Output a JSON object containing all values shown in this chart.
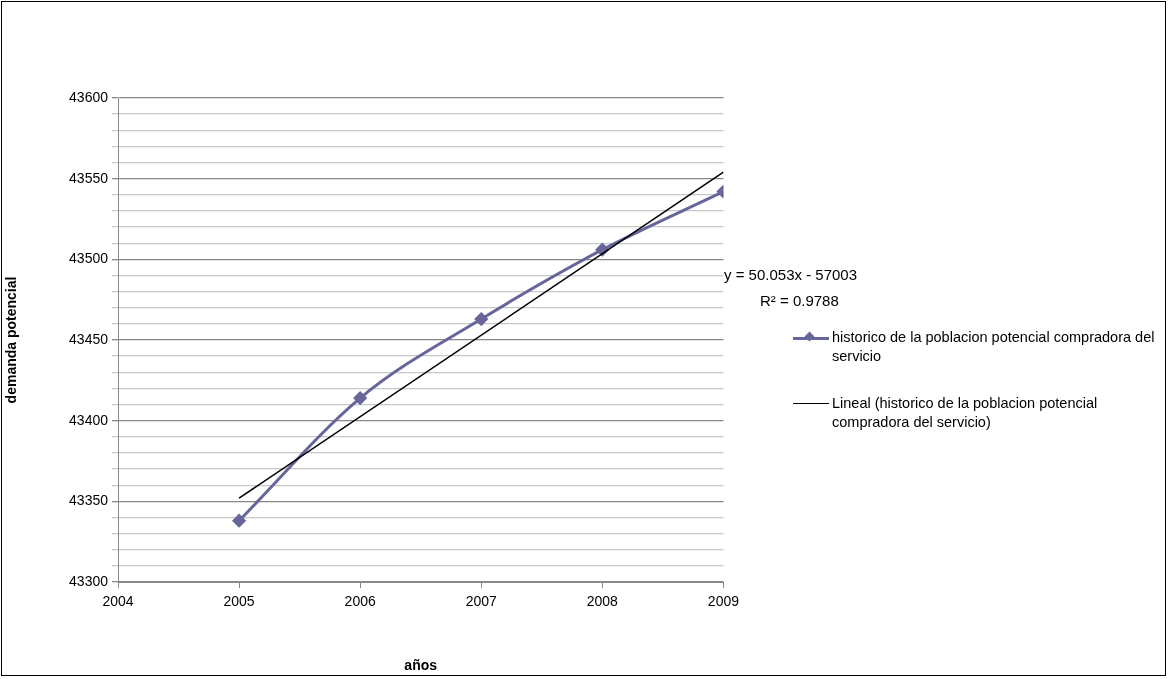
{
  "chart_data": {
    "type": "line",
    "xlabel": "años",
    "ylabel": "demanda potencial",
    "xlim": [
      2004,
      2009
    ],
    "xticks": [
      2004,
      2005,
      2006,
      2007,
      2008,
      2009
    ],
    "ylim": [
      43300,
      43600
    ],
    "yticks": [
      43300,
      {
        "value": 43310,
        "label": null
      },
      {
        "value": 43320,
        "label": null
      },
      {
        "value": 43330,
        "label": null
      },
      {
        "value": 43340,
        "label": null
      },
      43350,
      {
        "value": 43360,
        "label": null
      },
      {
        "value": 43370,
        "label": null
      },
      {
        "value": 43380,
        "label": null
      },
      {
        "value": 43390,
        "label": null
      },
      43400,
      {
        "value": 43410,
        "label": null
      },
      {
        "value": 43420,
        "label": null
      },
      {
        "value": 43430,
        "label": null
      },
      {
        "value": 43440,
        "label": null
      },
      43450,
      {
        "value": 43460,
        "label": null
      },
      {
        "value": 43470,
        "label": null
      },
      {
        "value": 43480,
        "label": null
      },
      {
        "value": 43490,
        "label": null
      },
      43500,
      {
        "value": 43510,
        "label": null
      },
      {
        "value": 43520,
        "label": null
      },
      {
        "value": 43530,
        "label": null
      },
      {
        "value": 43540,
        "label": null
      },
      43550,
      {
        "value": 43560,
        "label": null
      },
      {
        "value": 43570,
        "label": null
      },
      {
        "value": 43580,
        "label": null
      },
      {
        "value": 43590,
        "label": null
      },
      43600
    ],
    "grid": "y",
    "legend": "right",
    "series": [
      {
        "name": "historico de la poblacion potencial compradora del servicio",
        "color": "#66669a",
        "marker": "diamond",
        "x": [
          2005,
          2006,
          2007,
          2008,
          2009
        ],
        "values": [
          43338,
          43414,
          43463,
          43506,
          43542
        ]
      },
      {
        "name": "Lineal (historico de la poblacion potencial compradora del servicio)",
        "color": "#000000",
        "marker": "none",
        "x": [
          2005,
          2009
        ],
        "values": [
          43352,
          43554
        ]
      }
    ],
    "annotations": [
      "y = 50.053x - 57003",
      "R² = 0.9788"
    ]
  }
}
